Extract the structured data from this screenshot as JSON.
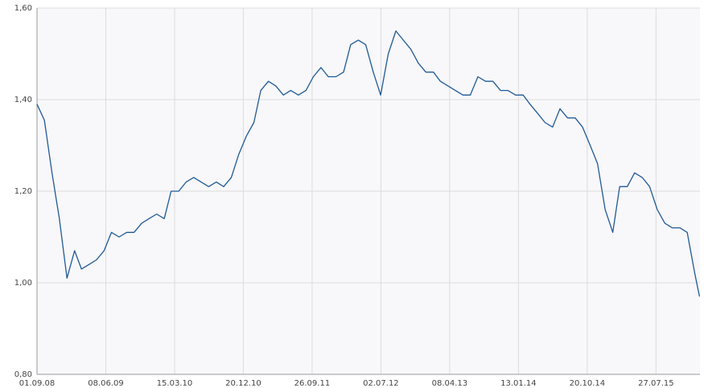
{
  "chart_data": {
    "type": "line",
    "x": [
      "2008-09-01",
      "2008-10-01",
      "2008-11-01",
      "2008-12-01",
      "2009-01-01",
      "2009-02-01",
      "2009-03-01",
      "2009-04-01",
      "2009-05-01",
      "2009-06-01",
      "2009-07-01",
      "2009-08-01",
      "2009-09-01",
      "2009-10-01",
      "2009-11-01",
      "2009-12-01",
      "2010-01-01",
      "2010-02-01",
      "2010-03-01",
      "2010-04-01",
      "2010-05-01",
      "2010-06-01",
      "2010-07-01",
      "2010-08-01",
      "2010-09-01",
      "2010-10-01",
      "2010-11-01",
      "2010-12-01",
      "2011-01-01",
      "2011-02-01",
      "2011-03-01",
      "2011-04-01",
      "2011-05-01",
      "2011-06-01",
      "2011-07-01",
      "2011-08-01",
      "2011-09-01",
      "2011-10-01",
      "2011-11-01",
      "2011-12-01",
      "2012-01-01",
      "2012-02-01",
      "2012-03-01",
      "2012-04-01",
      "2012-05-01",
      "2012-06-01",
      "2012-07-01",
      "2012-08-01",
      "2012-09-01",
      "2012-10-01",
      "2012-11-01",
      "2012-12-01",
      "2013-01-01",
      "2013-02-01",
      "2013-03-01",
      "2013-04-01",
      "2013-05-01",
      "2013-06-01",
      "2013-07-01",
      "2013-08-01",
      "2013-09-01",
      "2013-10-01",
      "2013-11-01",
      "2013-12-01",
      "2014-01-01",
      "2014-02-01",
      "2014-03-01",
      "2014-04-01",
      "2014-05-01",
      "2014-06-01",
      "2014-07-01",
      "2014-08-01",
      "2014-09-01",
      "2014-10-01",
      "2014-11-01",
      "2014-12-01",
      "2015-01-01",
      "2015-02-01",
      "2015-03-01",
      "2015-04-01",
      "2015-05-01",
      "2015-06-01",
      "2015-07-01",
      "2015-08-01",
      "2015-09-01",
      "2015-10-01",
      "2015-11-01",
      "2015-12-01",
      "2016-01-01",
      "2016-01-20"
    ],
    "series": [
      {
        "color": "#1f5a96",
        "values": [
          1.39,
          1.355,
          1.24,
          1.14,
          1.01,
          1.07,
          1.03,
          1.04,
          1.05,
          1.07,
          1.11,
          1.1,
          1.11,
          1.11,
          1.13,
          1.14,
          1.15,
          1.14,
          1.2,
          1.2,
          1.22,
          1.23,
          1.22,
          1.21,
          1.22,
          1.21,
          1.23,
          1.28,
          1.32,
          1.35,
          1.42,
          1.44,
          1.43,
          1.41,
          1.42,
          1.41,
          1.42,
          1.45,
          1.47,
          1.45,
          1.45,
          1.46,
          1.52,
          1.53,
          1.52,
          1.46,
          1.41,
          1.5,
          1.55,
          1.53,
          1.51,
          1.48,
          1.46,
          1.46,
          1.44,
          1.43,
          1.42,
          1.41,
          1.41,
          1.45,
          1.44,
          1.44,
          1.42,
          1.42,
          1.41,
          1.41,
          1.39,
          1.37,
          1.35,
          1.34,
          1.38,
          1.36,
          1.36,
          1.34,
          1.3,
          1.26,
          1.16,
          1.11,
          1.21,
          1.21,
          1.24,
          1.23,
          1.21,
          1.16,
          1.13,
          1.12,
          1.12,
          1.11,
          1.02,
          0.97
        ]
      }
    ],
    "xlim": [
      "2008-09-01",
      "2016-01-22"
    ],
    "xticks": [
      {
        "value": "2008-09-01",
        "label": "01.09.08"
      },
      {
        "value": "2009-06-08",
        "label": "08.06.09"
      },
      {
        "value": "2010-03-15",
        "label": "15.03.10"
      },
      {
        "value": "2010-12-20",
        "label": "20.12.10"
      },
      {
        "value": "2011-09-26",
        "label": "26.09.11"
      },
      {
        "value": "2012-07-02",
        "label": "02.07.12"
      },
      {
        "value": "2013-04-08",
        "label": "08.04.13"
      },
      {
        "value": "2014-01-13",
        "label": "13.01.14"
      },
      {
        "value": "2014-10-20",
        "label": "20.10.14"
      },
      {
        "value": "2015-07-27",
        "label": "27.07.15"
      }
    ],
    "ylim": [
      0.8,
      1.6
    ],
    "yticks": [
      {
        "value": 0.8,
        "label": "0,80"
      },
      {
        "value": 1.0,
        "label": "1,00"
      },
      {
        "value": 1.2,
        "label": "1,20"
      },
      {
        "value": 1.4,
        "label": "1,40"
      },
      {
        "value": 1.6,
        "label": "1,60"
      }
    ],
    "grid": true
  }
}
